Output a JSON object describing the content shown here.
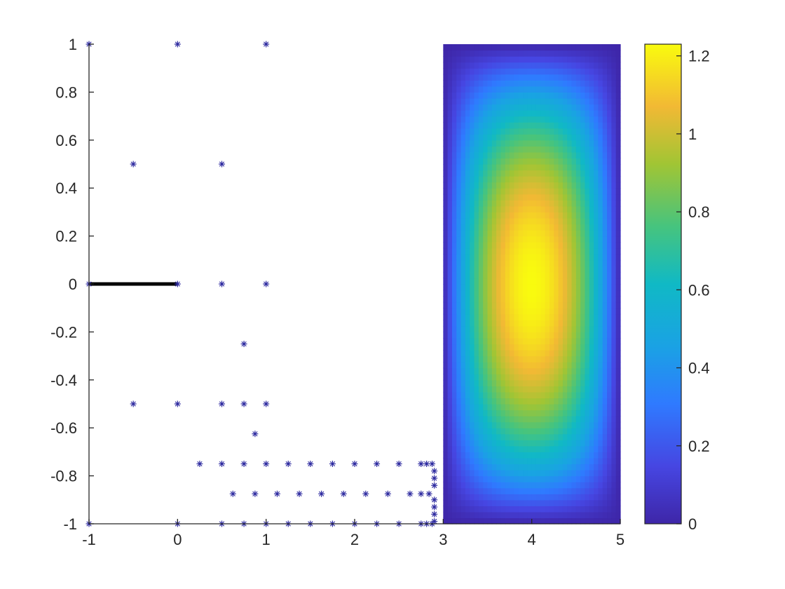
{
  "chart_data": {
    "type": "scatter",
    "title": "",
    "xlabel": "",
    "ylabel": "",
    "xlim": [
      -1,
      5
    ],
    "ylim": [
      -1,
      1
    ],
    "x_ticks": [
      "-1",
      "0",
      "1",
      "2",
      "3",
      "4",
      "5"
    ],
    "y_ticks": [
      "-1",
      "-0.8",
      "-0.6",
      "-0.4",
      "-0.2",
      "0",
      "0.2",
      "0.4",
      "0.6",
      "0.8",
      "1"
    ],
    "grid": false,
    "marker": "*",
    "marker_color": "#2e2ba0",
    "line_segment": {
      "x": [
        -1,
        0
      ],
      "y": [
        0,
        0
      ],
      "color": "#000000"
    },
    "points": [
      [
        -1,
        1
      ],
      [
        0,
        1
      ],
      [
        1,
        1
      ],
      [
        -0.5,
        0.5
      ],
      [
        0.5,
        0.5
      ],
      [
        -1,
        0
      ],
      [
        0,
        0
      ],
      [
        0.5,
        0
      ],
      [
        1,
        0
      ],
      [
        0.75,
        -0.25
      ],
      [
        -0.5,
        -0.5
      ],
      [
        0,
        -0.5
      ],
      [
        0.5,
        -0.5
      ],
      [
        0.75,
        -0.5
      ],
      [
        1,
        -0.5
      ],
      [
        0.875,
        -0.625
      ],
      [
        0.25,
        -0.75
      ],
      [
        0.5,
        -0.75
      ],
      [
        0.75,
        -0.75
      ],
      [
        1,
        -0.75
      ],
      [
        1.25,
        -0.75
      ],
      [
        1.5,
        -0.75
      ],
      [
        1.75,
        -0.75
      ],
      [
        2,
        -0.75
      ],
      [
        2.25,
        -0.75
      ],
      [
        2.5,
        -0.75
      ],
      [
        2.75,
        -0.75
      ],
      [
        2.8125,
        -0.75
      ],
      [
        2.875,
        -0.75
      ],
      [
        0.625,
        -0.875
      ],
      [
        0.875,
        -0.875
      ],
      [
        1.125,
        -0.875
      ],
      [
        1.375,
        -0.875
      ],
      [
        1.625,
        -0.875
      ],
      [
        1.875,
        -0.875
      ],
      [
        2.125,
        -0.875
      ],
      [
        2.375,
        -0.875
      ],
      [
        2.625,
        -0.875
      ],
      [
        2.75,
        -0.875
      ],
      [
        2.84,
        -0.875
      ],
      [
        -1,
        -1
      ],
      [
        0,
        -1
      ],
      [
        0.5,
        -1
      ],
      [
        0.75,
        -1
      ],
      [
        1,
        -1
      ],
      [
        1.25,
        -1
      ],
      [
        1.5,
        -1
      ],
      [
        1.75,
        -1
      ],
      [
        2,
        -1
      ],
      [
        2.25,
        -1
      ],
      [
        2.5,
        -1
      ],
      [
        2.75,
        -1
      ],
      [
        2.8125,
        -1
      ],
      [
        2.875,
        -1
      ],
      [
        2.9,
        -0.78
      ],
      [
        2.9,
        -0.81
      ],
      [
        2.9,
        -0.84
      ],
      [
        2.9,
        -0.9
      ],
      [
        2.9,
        -0.93
      ],
      [
        2.9,
        -0.96
      ],
      [
        2.9,
        -0.99
      ]
    ],
    "heatmap": {
      "x_range": [
        3,
        5
      ],
      "y_range": [
        -1,
        1
      ],
      "peak_location": [
        4,
        0
      ],
      "peak_value": 1.23,
      "description_function": "gaussian-like bump"
    },
    "colorbar": {
      "range": [
        0,
        1.23
      ],
      "ticks": [
        "0",
        "0.2",
        "0.4",
        "0.6",
        "0.8",
        "1",
        "1.2"
      ],
      "colormap": "parula"
    }
  }
}
